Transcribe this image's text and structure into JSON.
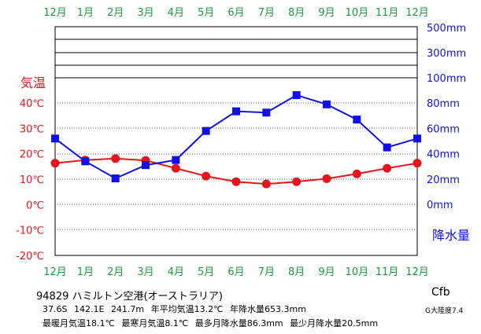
{
  "chart_data": {
    "type": "line",
    "categories": [
      "12月",
      "1月",
      "2月",
      "3月",
      "4月",
      "5月",
      "6月",
      "7月",
      "8月",
      "9月",
      "10月",
      "11月",
      "12月"
    ],
    "series": [
      {
        "name": "気温",
        "axis": "left",
        "color": "#e8141b",
        "values": [
          16.3,
          17.5,
          18.1,
          17.4,
          14.3,
          11.2,
          9.0,
          8.1,
          9.0,
          10.2,
          12.1,
          14.3,
          16.3
        ]
      },
      {
        "name": "降水量",
        "axis": "right",
        "color": "#1010e8",
        "values": [
          52.0,
          34.0,
          20.5,
          31.0,
          35.0,
          58.0,
          73.5,
          72.5,
          86.3,
          79.0,
          67.0,
          45.0,
          52.0
        ]
      }
    ],
    "left_axis": {
      "label": "気温",
      "range": [
        -20,
        40
      ],
      "ticks": [
        "-20℃",
        "-10℃",
        "0℃",
        "10℃",
        "20℃",
        "30℃",
        "40℃"
      ],
      "values": [
        -20,
        -10,
        0,
        10,
        20,
        30,
        40
      ]
    },
    "right_axis": {
      "label": "降水量",
      "ticks": [
        "0mm",
        "20mm",
        "40mm",
        "60mm",
        "80mm",
        "100mm",
        "300mm",
        "500mm"
      ],
      "values": [
        0,
        20,
        40,
        60,
        80,
        100,
        300,
        500
      ]
    },
    "colors": {
      "month_labels": "#1a9c3c",
      "temperature_axis": "#e8141b",
      "precip_axis": "#1010e8",
      "grid": "#000000"
    }
  },
  "footer": {
    "station": "94829  ハミルトン空港(オーストラリア)",
    "stats1": [
      "37.6S",
      "142.1E",
      "241.7m",
      "年平均気温13.2℃",
      "年降水量653.3mm"
    ],
    "stats2": [
      "最暖月気温18.1℃",
      "最寒月気温8.1℃",
      "最多月降水量86.3mm",
      "最少月降水量20.5mm"
    ],
    "climate_code": "Cfb",
    "continentality": "G大陸度7.4"
  }
}
